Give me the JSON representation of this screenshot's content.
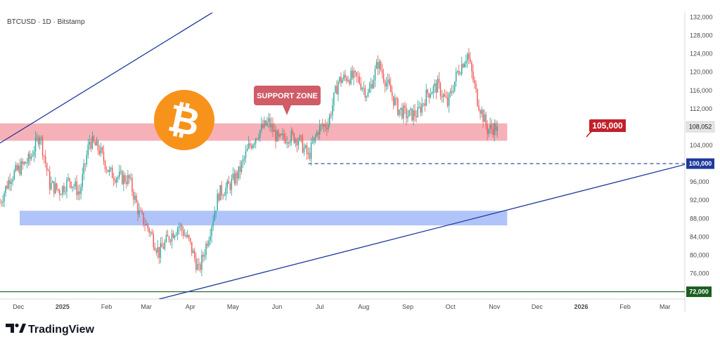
{
  "header": {
    "pair_label": "BTCUSD · 1D · Bitstamp"
  },
  "branding": {
    "logo_text": "TradingView",
    "logo_icon": "tradingview-logo-icon"
  },
  "annotations": {
    "support_zone_label": "SUPPORT ZONE",
    "level_105_label": "105,000",
    "bitcoin_icon": "bitcoin-logo-icon"
  },
  "price_tags": {
    "current": "108,052",
    "level_100": "100,000",
    "level_72": "72,000"
  },
  "colors": {
    "up_candle": "#26a69a",
    "down_candle": "#ef5350",
    "support_zone": "#f4a3ab",
    "demand_zone": "#9db5f7",
    "channel_line": "#1f3a9c",
    "level_72_line": "#1b5e20",
    "bitcoin_orange": "#f7931a",
    "annotation_red": "#c2202b"
  },
  "chart_data": {
    "type": "candlestick",
    "symbol": "BTCUSD",
    "timeframe": "1D",
    "exchange": "Bitstamp",
    "x_tick_labels": [
      "Dec",
      "2025",
      "Feb",
      "Mar",
      "Apr",
      "May",
      "Jun",
      "Jul",
      "Aug",
      "Sep",
      "Oct",
      "Nov",
      "Dec",
      "2026",
      "Feb",
      "Mar"
    ],
    "x_tick_dates": [
      "2024-12-01",
      "2025-01-01",
      "2025-02-01",
      "2025-03-01",
      "2025-04-01",
      "2025-05-01",
      "2025-06-01",
      "2025-07-01",
      "2025-08-01",
      "2025-09-01",
      "2025-10-01",
      "2025-11-01",
      "2025-12-01",
      "2026-01-01",
      "2026-02-01",
      "2026-03-01"
    ],
    "y_tick_labels": [
      "132,000",
      "128,000",
      "124,000",
      "120,000",
      "116,000",
      "112,000",
      "108,000",
      "104,000",
      "100,000",
      "96,000",
      "92,000",
      "88,000",
      "84,000",
      "80,000",
      "76,000",
      "72,000"
    ],
    "y_ticks": [
      132000,
      128000,
      124000,
      120000,
      116000,
      112000,
      108000,
      104000,
      100000,
      96000,
      92000,
      88000,
      84000,
      80000,
      76000,
      72000
    ],
    "ylim": [
      70400,
      133000
    ],
    "xlim": [
      "2024-11-18",
      "2026-03-15"
    ],
    "current_price": 108052,
    "price_path": [
      [
        "2024-11-18",
        91500
      ],
      [
        "2024-11-25",
        97000
      ],
      [
        "2024-12-02",
        99000
      ],
      [
        "2024-12-09",
        101000
      ],
      [
        "2024-12-16",
        106500
      ],
      [
        "2024-12-23",
        95500
      ],
      [
        "2024-12-30",
        94000
      ],
      [
        "2025-01-06",
        96500
      ],
      [
        "2025-01-13",
        93500
      ],
      [
        "2025-01-20",
        105000
      ],
      [
        "2025-01-27",
        103000
      ],
      [
        "2025-02-03",
        98000
      ],
      [
        "2025-02-10",
        97000
      ],
      [
        "2025-02-17",
        96500
      ],
      [
        "2025-02-24",
        89000
      ],
      [
        "2025-03-03",
        85500
      ],
      [
        "2025-03-10",
        80500
      ],
      [
        "2025-03-17",
        84000
      ],
      [
        "2025-03-24",
        86500
      ],
      [
        "2025-03-31",
        83000
      ],
      [
        "2025-04-07",
        76500
      ],
      [
        "2025-04-14",
        84500
      ],
      [
        "2025-04-21",
        93500
      ],
      [
        "2025-04-28",
        95000
      ],
      [
        "2025-05-05",
        98000
      ],
      [
        "2025-05-12",
        103500
      ],
      [
        "2025-05-19",
        107000
      ],
      [
        "2025-05-26",
        109000
      ],
      [
        "2025-06-02",
        105000
      ],
      [
        "2025-06-09",
        106000
      ],
      [
        "2025-06-16",
        105500
      ],
      [
        "2025-06-23",
        101500
      ],
      [
        "2025-06-30",
        107500
      ],
      [
        "2025-07-07",
        109000
      ],
      [
        "2025-07-14",
        118000
      ],
      [
        "2025-07-21",
        119000
      ],
      [
        "2025-07-28",
        118500
      ],
      [
        "2025-08-04",
        115000
      ],
      [
        "2025-08-11",
        122000
      ],
      [
        "2025-08-18",
        117000
      ],
      [
        "2025-08-25",
        112000
      ],
      [
        "2025-09-01",
        110500
      ],
      [
        "2025-09-08",
        111000
      ],
      [
        "2025-09-15",
        115500
      ],
      [
        "2025-09-22",
        117000
      ],
      [
        "2025-09-29",
        113000
      ],
      [
        "2025-10-06",
        120000
      ],
      [
        "2025-10-13",
        124000
      ],
      [
        "2025-10-20",
        114000
      ],
      [
        "2025-10-27",
        107500
      ],
      [
        "2025-11-03",
        108052
      ]
    ],
    "zones": [
      {
        "name": "SUPPORT ZONE",
        "y_range": [
          105000,
          108800
        ],
        "x_range": [
          "2024-11-18",
          "2025-11-10"
        ]
      },
      {
        "name": "",
        "y_range": [
          86500,
          89700
        ],
        "x_range": [
          "2024-11-20",
          "2025-11-10"
        ]
      }
    ],
    "levels": [
      {
        "label": "105,000",
        "y": 105000
      },
      {
        "label": "100,000",
        "y": 100000,
        "style": "dashed",
        "x_start": "2025-06-23"
      },
      {
        "label": "72,000",
        "y": 72000,
        "style": "solid"
      }
    ],
    "trendlines": [
      {
        "from": [
          "2024-11-18",
          104500
        ],
        "to": [
          "2025-07-04",
          148000
        ]
      },
      {
        "from": [
          "2025-03-10",
          70400
        ],
        "to": [
          "2026-03-15",
          99800
        ]
      }
    ],
    "grid": false
  }
}
